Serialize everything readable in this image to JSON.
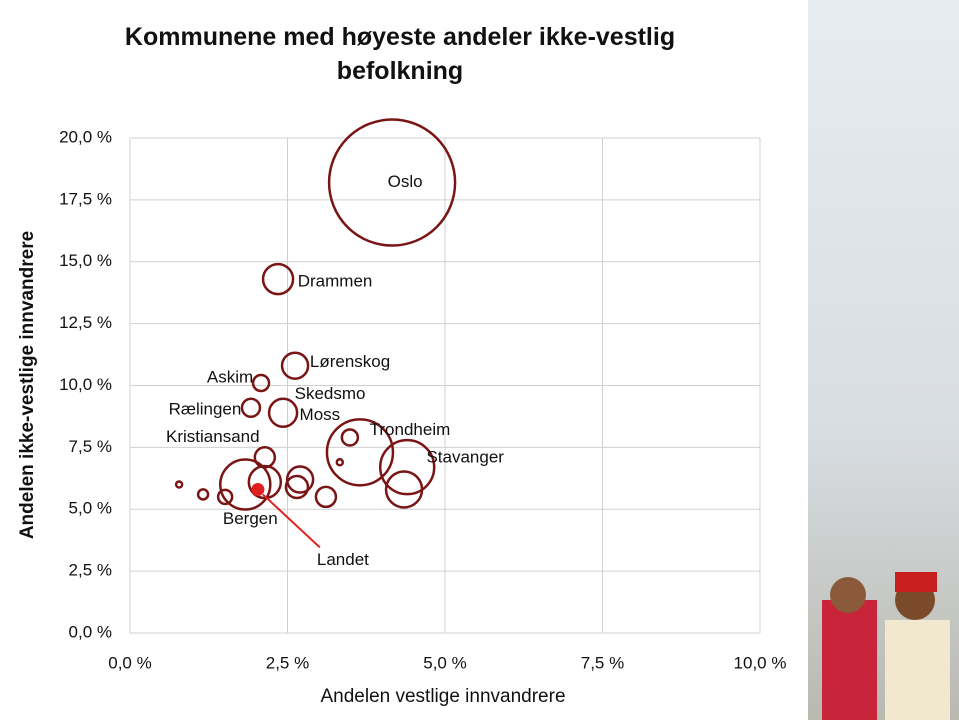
{
  "chart_data": {
    "type": "bubble",
    "title": "Kommunene med høyeste andeler ikke-vestlig befolkning",
    "x_label": "Andelen vestlige innvandrere",
    "y_label": "Andelen ikke-vestlige innvandrere",
    "x": [
      4.16,
      2.35,
      2.62,
      2.08,
      2.43,
      1.92,
      3.49,
      3.65,
      4.4,
      2.14,
      1.83,
      0.78,
      1.16,
      1.51,
      2.7,
      3.11,
      4.35,
      3.33,
      2.14,
      2.65
    ],
    "values": [
      18.2,
      14.3,
      10.8,
      10.1,
      8.9,
      9.1,
      7.9,
      7.3,
      6.7,
      7.1,
      6.0,
      6.0,
      5.6,
      5.5,
      6.2,
      5.5,
      5.8,
      6.9,
      6.1,
      5.9
    ],
    "sizes": [
      63,
      15,
      13,
      8,
      14,
      9,
      8,
      33,
      27,
      10,
      25,
      3,
      5,
      7,
      13,
      10,
      18,
      3,
      16,
      11
    ],
    "labels": [
      "Oslo",
      "Drammen",
      "Lørenskog",
      "Askim",
      "Skedsmo",
      "Rælingen",
      "Moss",
      "Trondheim",
      "Stavanger",
      "Kristiansand",
      "Bergen",
      null,
      null,
      null,
      null,
      null,
      null,
      null,
      null,
      null
    ],
    "color": "#7a1515",
    "highlight": {
      "label": "Landet",
      "x": 2.03,
      "value": 5.8,
      "size": 6,
      "color": "#e0201e"
    },
    "xlim": [
      0,
      10
    ],
    "ylim": [
      0,
      20
    ],
    "xticks": [
      {
        "value": 0,
        "label": "0,0 %"
      },
      {
        "value": 2.5,
        "label": "2,5 %"
      },
      {
        "value": 5,
        "label": "5,0 %"
      },
      {
        "value": 7.5,
        "label": "7,5 %"
      },
      {
        "value": 10,
        "label": "10,0 %"
      }
    ],
    "yticks": [
      {
        "value": 0,
        "label": "0,0 %"
      },
      {
        "value": 2.5,
        "label": "2,5 %"
      },
      {
        "value": 5,
        "label": "5,0 %"
      },
      {
        "value": 7.5,
        "label": "7,5 %"
      },
      {
        "value": 10,
        "label": "10,0 %"
      },
      {
        "value": 12.5,
        "label": "12,5 %"
      },
      {
        "value": 15,
        "label": "15,0 %"
      },
      {
        "value": 17.5,
        "label": "17,5 %"
      },
      {
        "value": 20,
        "label": "20,0 %"
      }
    ],
    "grid": true
  }
}
